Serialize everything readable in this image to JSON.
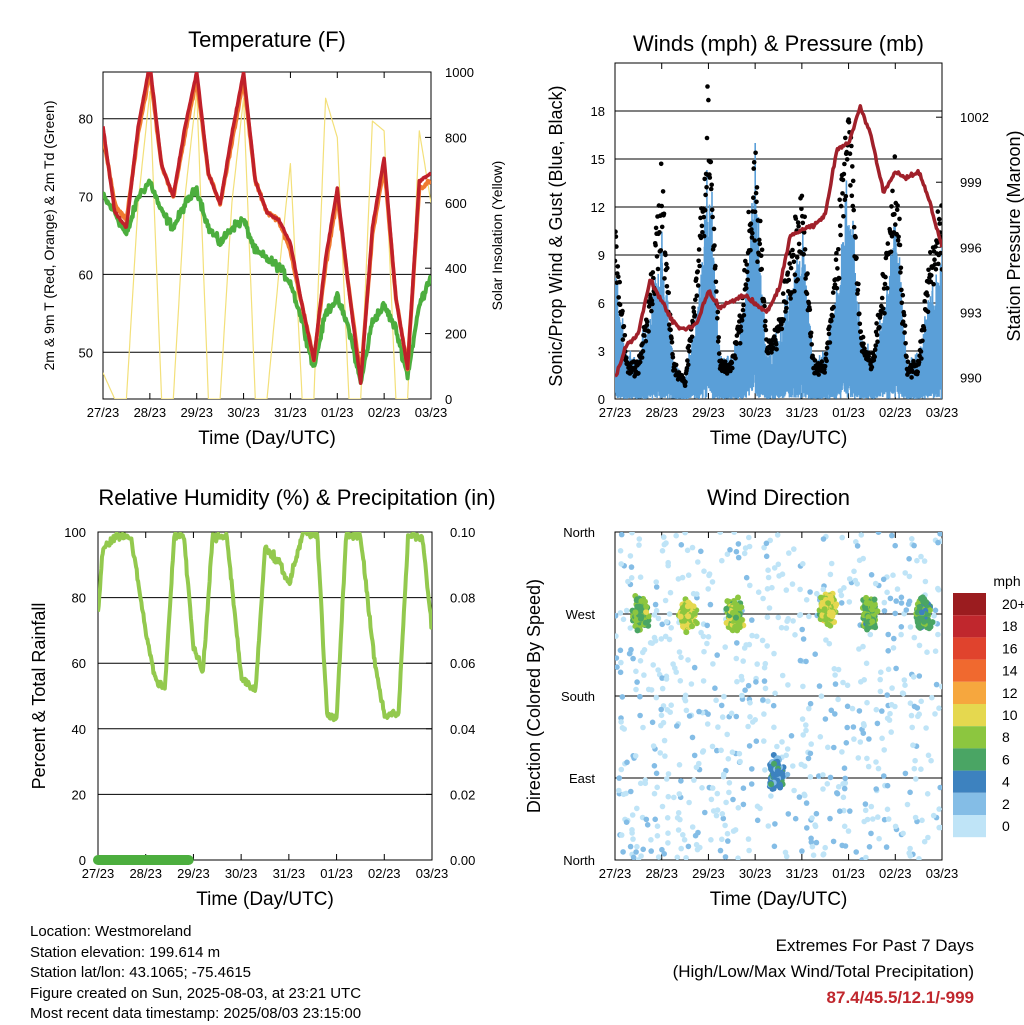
{
  "x_ticks": [
    "27/23",
    "28/23",
    "29/23",
    "30/23",
    "31/23",
    "01/23",
    "02/23",
    "03/23"
  ],
  "colors": {
    "temp2m": "#c0202a",
    "temp9m": "#f07a30",
    "dewpoint": "#4cae3e",
    "solar": "#f3e07a",
    "gust": "#000000",
    "wind": "#5a9fd8",
    "pressure": "#a0202a",
    "rh": "#93c94e",
    "precip": "#4cae3e"
  },
  "panels": {
    "temperature": {
      "title": "Temperature (F)",
      "xlabel": "Time (Day/UTC)",
      "ylabel": "2m & 9m T (Red, Orange) & 2m Td (Green)",
      "y2label": "Solar Insolation (Yellow)",
      "y_ticks": [
        "50",
        "60",
        "70",
        "80"
      ],
      "y2_ticks": [
        "0",
        "200",
        "400",
        "600",
        "800",
        "1000"
      ]
    },
    "winds": {
      "title": "Winds (mph) & Pressure (mb)",
      "xlabel": "Time (Day/UTC)",
      "ylabel": "Sonic/Prop Wind & Gust (Blue, Black)",
      "y2label": "Station Pressure (Maroon)",
      "y_ticks": [
        "0",
        "3",
        "6",
        "9",
        "12",
        "15",
        "18"
      ],
      "y2_ticks": [
        "990",
        "993",
        "996",
        "999",
        "1002"
      ]
    },
    "humidity": {
      "title": "Relative Humidity (%) & Precipitation (in)",
      "xlabel": "Time (Day/UTC)",
      "ylabel": "Percent & Total Rainfall",
      "y_ticks": [
        "0",
        "20",
        "40",
        "60",
        "80",
        "100"
      ],
      "y2_ticks": [
        "0.00",
        "0.02",
        "0.04",
        "0.06",
        "0.08",
        "0.10"
      ]
    },
    "direction": {
      "title": "Wind Direction",
      "xlabel": "Time (Day/UTC)",
      "ylabel": "Direction (Colored By Speed)",
      "y_ticks": [
        "North",
        "East",
        "South",
        "West",
        "North"
      ],
      "colorbar_title": "mph",
      "colorbar_labels": [
        "20+",
        "18",
        "16",
        "14",
        "12",
        "10",
        "8",
        "6",
        "4",
        "2",
        "0"
      ],
      "colorbar_colors": [
        "#9b1c1f",
        "#c0272d",
        "#e0432d",
        "#f0692f",
        "#f6a73e",
        "#e5d84f",
        "#8cc63f",
        "#4aa564",
        "#3d82bf",
        "#84bde6",
        "#bfe4f7"
      ]
    }
  },
  "info": {
    "location": "Location: Westmoreland",
    "elevation": "Station elevation: 199.614 m",
    "latlon": "Station lat/lon: 43.1065; -75.4615",
    "created": "Figure created on Sun, 2025-08-03, at 23:21 UTC",
    "recent": "Most recent data timestamp: 2025/08/03 23:15:00"
  },
  "extremes": {
    "line1": "Extremes For Past 7 Days",
    "line2": "(High/Low/Max Wind/Total Precipitation)",
    "values": "87.4/45.5/12.1/-999"
  },
  "chart_data": [
    {
      "type": "line",
      "title": "Temperature (F)",
      "xlabel": "Time (Day/UTC)",
      "x": [
        0,
        0.25,
        0.5,
        0.75,
        1,
        1.25,
        1.5,
        1.75,
        2,
        2.25,
        2.5,
        2.75,
        3,
        3.25,
        3.5,
        3.75,
        4,
        4.25,
        4.5,
        4.75,
        5,
        5.25,
        5.5,
        5.75,
        6,
        6.25,
        6.5,
        6.75,
        7
      ],
      "series": [
        {
          "name": "2m T",
          "axis": "left",
          "values": [
            79,
            68,
            66,
            79,
            87,
            74,
            70,
            79,
            86,
            73,
            69,
            78,
            86,
            72,
            68,
            67,
            64,
            56,
            49,
            62,
            71,
            58,
            46,
            66,
            75,
            57,
            48,
            72,
            73
          ]
        },
        {
          "name": "9m T",
          "axis": "left",
          "values": [
            78,
            69,
            67,
            78,
            86,
            74,
            70,
            78,
            85,
            73,
            69,
            77,
            85,
            72,
            68,
            67,
            63,
            56,
            49,
            61,
            70,
            58,
            47,
            65,
            74,
            57,
            48,
            71,
            72
          ]
        },
        {
          "name": "2m Td",
          "axis": "left",
          "values": [
            70,
            68,
            65,
            70,
            72,
            68,
            66,
            69,
            71,
            66,
            64,
            66,
            67,
            63,
            62,
            61,
            59,
            54,
            48,
            55,
            57,
            53,
            46,
            54,
            56,
            53,
            47,
            56,
            60
          ]
        },
        {
          "name": "Solar Insolation",
          "axis": "right",
          "values": [
            80,
            0,
            0,
            600,
            940,
            0,
            0,
            620,
            940,
            0,
            0,
            600,
            920,
            0,
            0,
            380,
            720,
            0,
            0,
            920,
            800,
            0,
            0,
            850,
            820,
            0,
            0,
            820,
            600
          ]
        }
      ],
      "ylim": [
        44,
        86
      ],
      "y2lim": [
        0,
        1000
      ],
      "xlim": [
        0,
        7
      ]
    },
    {
      "type": "line",
      "title": "Winds (mph) & Pressure (mb)",
      "xlabel": "Time (Day/UTC)",
      "x": [
        0,
        0.25,
        0.5,
        0.75,
        1,
        1.25,
        1.5,
        1.75,
        2,
        2.25,
        2.5,
        2.75,
        3,
        3.25,
        3.5,
        3.75,
        4,
        4.25,
        4.5,
        4.75,
        5,
        5.25,
        5.5,
        5.75,
        6,
        6.25,
        6.5,
        6.75,
        7
      ],
      "series": [
        {
          "name": "Wind",
          "axis": "left",
          "values": [
            5,
            1,
            1,
            3,
            6,
            1,
            0,
            3,
            9,
            1,
            1,
            3,
            9,
            1,
            2,
            4,
            6,
            1,
            1,
            4,
            9,
            2,
            1,
            3,
            7,
            1,
            1,
            4,
            5
          ]
        },
        {
          "name": "Gust",
          "axis": "left",
          "values": [
            10,
            2,
            2,
            6,
            12,
            2,
            1,
            7,
            16,
            2,
            2,
            6,
            14,
            3,
            4,
            8,
            11,
            2,
            2,
            8,
            17,
            4,
            2,
            7,
            13,
            2,
            2,
            8,
            10
          ]
        },
        {
          "name": "Pressure",
          "axis": "right",
          "values": [
            990,
            991.5,
            992,
            994.5,
            993.5,
            992.5,
            992.2,
            992.5,
            994,
            993.2,
            993.5,
            993.8,
            993.4,
            993,
            994,
            996.5,
            996.8,
            997,
            997.5,
            1000.5,
            1000.8,
            1002.5,
            1001,
            998.5,
            999.5,
            999.2,
            999.5,
            998,
            996
          ]
        }
      ],
      "ylim": [
        0,
        21
      ],
      "y2lim": [
        989,
        1004.5
      ],
      "xlim": [
        0,
        7
      ]
    },
    {
      "type": "line",
      "title": "Relative Humidity (%) & Precipitation (in)",
      "xlabel": "Time (Day/UTC)",
      "x": [
        0,
        0.1,
        0.4,
        0.7,
        1,
        1.2,
        1.4,
        1.6,
        1.8,
        2,
        2.2,
        2.4,
        2.7,
        3,
        3.3,
        3.5,
        3.8,
        4,
        4.3,
        4.6,
        4.8,
        5,
        5.2,
        5.5,
        5.8,
        6,
        6.3,
        6.5,
        6.8,
        7
      ],
      "series": [
        {
          "name": "RH",
          "axis": "left",
          "values": [
            75,
            95,
            99,
            98,
            70,
            55,
            52,
            99,
            99,
            65,
            57,
            98,
            99,
            56,
            51,
            95,
            91,
            84,
            100,
            99,
            44,
            43,
            99,
            99,
            60,
            44,
            45,
            99,
            98,
            70
          ]
        },
        {
          "name": "Precipitation",
          "axis": "right",
          "values": [
            0,
            0,
            0,
            0,
            0,
            0,
            0,
            0,
            0,
            0,
            0,
            0,
            0,
            0,
            0,
            0,
            0,
            0,
            0,
            0,
            0,
            0,
            0,
            0,
            0,
            0,
            0,
            0,
            0,
            0
          ]
        }
      ],
      "ylim": [
        0,
        100
      ],
      "y2lim": [
        0,
        0.1
      ],
      "xlim": [
        0,
        7
      ]
    },
    {
      "type": "scatter",
      "title": "Wind Direction",
      "xlabel": "Time (Day/UTC)",
      "ylabel": "Direction (Colored By Speed)",
      "y_categories": [
        "North",
        "East",
        "South",
        "West",
        "North"
      ],
      "ylim": [
        0,
        360
      ],
      "xlim": [
        0,
        7
      ],
      "series": [
        {
          "x_center": 0.55,
          "dir_center": 270,
          "speed": 7
        },
        {
          "x_center": 1.55,
          "dir_center": 270,
          "speed": 9
        },
        {
          "x_center": 2.55,
          "dir_center": 270,
          "speed": 8
        },
        {
          "x_center": 3.45,
          "dir_center": 95,
          "speed": 4
        },
        {
          "x_center": 4.55,
          "dir_center": 275,
          "speed": 9
        },
        {
          "x_center": 5.45,
          "dir_center": 270,
          "speed": 7
        },
        {
          "x_center": 6.6,
          "dir_center": 270,
          "speed": 6
        }
      ]
    }
  ]
}
